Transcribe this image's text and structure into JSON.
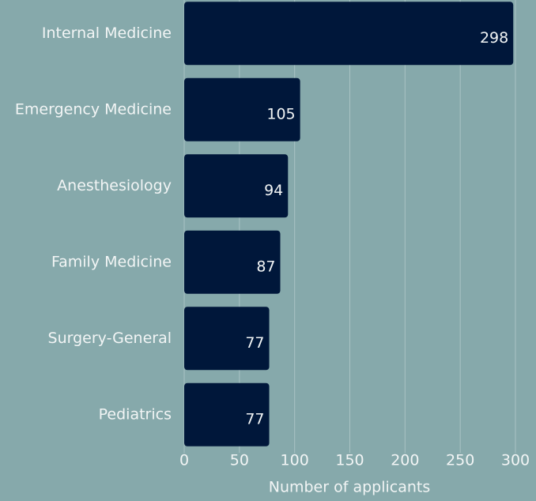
{
  "chart_data": {
    "type": "bar",
    "orientation": "horizontal",
    "categories": [
      "Internal Medicine",
      "Emergency Medicine",
      "Anesthesiology",
      "Family Medicine",
      "Surgery-General",
      "Pediatrics"
    ],
    "values": [
      298,
      105,
      94,
      87,
      77,
      77
    ],
    "color": "#00173a",
    "xlabel": "Number of applicants",
    "xlim": [
      0,
      300
    ],
    "xticks": [
      0,
      50,
      100,
      150,
      200,
      250,
      300
    ],
    "grid": true
  }
}
